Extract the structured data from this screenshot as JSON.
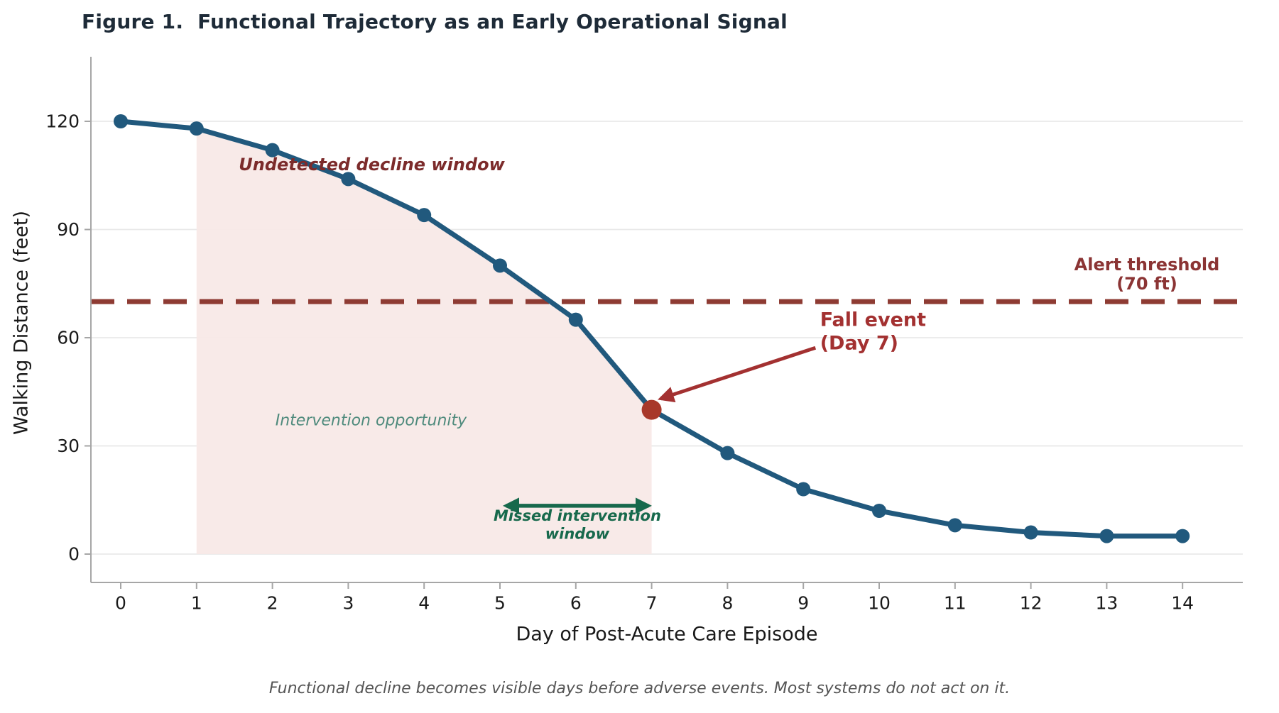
{
  "figure": {
    "title": "Figure 1.  Functional Trajectory as an Early Operational Signal",
    "caption": "Functional decline becomes visible days before adverse events. Most systems do not act on it."
  },
  "chart_data": {
    "type": "line",
    "x": [
      0,
      1,
      2,
      3,
      4,
      5,
      6,
      7,
      8,
      9,
      10,
      11,
      12,
      13,
      14
    ],
    "series": [
      {
        "name": "walking-distance",
        "values": [
          120,
          118,
          112,
          104,
          94,
          80,
          65,
          40,
          28,
          18,
          12,
          8,
          6,
          5,
          5
        ]
      }
    ],
    "xlabel": "Day of Post-Acute Care Episode",
    "ylabel": "Walking Distance (feet)",
    "xticks": [
      0,
      1,
      2,
      3,
      4,
      5,
      6,
      7,
      8,
      9,
      10,
      11,
      12,
      13,
      14
    ],
    "yticks": [
      0,
      30,
      60,
      90,
      120
    ],
    "xlim": [
      -0.4,
      14.8
    ],
    "ylim": [
      -8,
      138
    ],
    "grid": "horizontal",
    "threshold": {
      "value": 70,
      "lines": [
        "Alert threshold",
        "(70 ft)"
      ],
      "label_day": 13.53,
      "label_value_line1": 80.3,
      "label_value_line2": 75.0
    },
    "fall_event": {
      "day": 7,
      "value": 40,
      "lines": [
        "Fall event",
        "(Day 7)"
      ],
      "label_day": 9.22,
      "label_value_line1": 64.9,
      "label_value_line2": 58.4,
      "arrow": {
        "from_day": 9.16,
        "from_value": 57.2,
        "to_day": 7.12,
        "to_value": 43.1
      }
    },
    "shaded_region": {
      "from_day": 1,
      "to_day": 7
    },
    "annotations": {
      "undetected": {
        "text": "Undetected decline window",
        "day": 3.31,
        "value": 108
      },
      "intervention": {
        "text": "Intervention opportunity",
        "day": 3.3,
        "value": 37
      },
      "missed": {
        "lines": [
          "Missed intervention",
          "window"
        ],
        "day": 6.02,
        "value_line1": 10.6,
        "value_line2": 5.6,
        "arrow": {
          "from_day": 5.08,
          "to_day": 6.96,
          "value": 13.4
        }
      }
    }
  },
  "colors": {
    "line": "#21597d",
    "fall_red": "#a8382a",
    "fall_text": "#a33131",
    "threshold_line": "#8e3b33",
    "threshold_text": "#8b3434",
    "undetected_text": "#7c2b2b",
    "intervention_text": "#4e8a7c",
    "missed_green": "#17694c",
    "shade": "#f7e8e6",
    "title": "#1e2b38",
    "caption": "#555555",
    "axis_text": "#1a1a1a",
    "spine": "#a6a6a6",
    "grid": "#e9e9e9"
  }
}
